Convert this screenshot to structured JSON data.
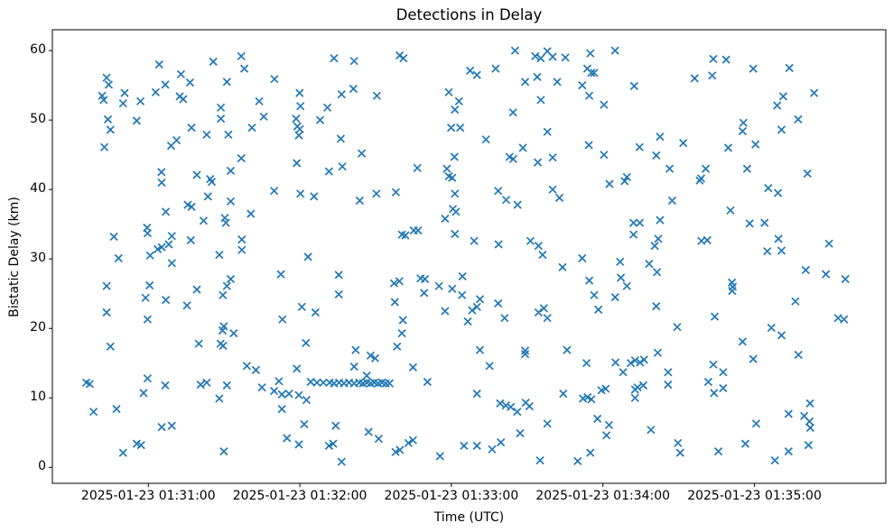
{
  "chart_data": {
    "type": "scatter",
    "title": "Detections in Delay",
    "xlabel": "Time (UTC)",
    "ylabel": "Bistatic Delay (km)",
    "marker": "x",
    "marker_color": "#1f77b4",
    "axes_edge_color": "#000000",
    "background_color": "#ffffff",
    "grid": false,
    "legend": null,
    "x_axis": {
      "unit": "seconds relative to 2025-01-23 01:31:00 UTC",
      "min": -38,
      "max": 292,
      "ticks": [
        {
          "value": 0,
          "label": "2025-01-23 01:31:00"
        },
        {
          "value": 60,
          "label": "2025-01-23 01:32:00"
        },
        {
          "value": 120,
          "label": "2025-01-23 01:33:00"
        },
        {
          "value": 180,
          "label": "2025-01-23 01:34:00"
        },
        {
          "value": 240,
          "label": "2025-01-23 01:35:00"
        }
      ]
    },
    "y_axis": {
      "min": -2.3,
      "max": 63,
      "ticks": [
        {
          "value": 0,
          "label": "0"
        },
        {
          "value": 10,
          "label": "10"
        },
        {
          "value": 20,
          "label": "20"
        },
        {
          "value": 30,
          "label": "30"
        },
        {
          "value": 40,
          "label": "40"
        },
        {
          "value": 50,
          "label": "50"
        },
        {
          "value": 60,
          "label": "60"
        }
      ]
    },
    "points": [
      [
        4.3,
        58.0
      ],
      [
        25.7,
        58.4
      ],
      [
        36.8,
        59.2
      ],
      [
        38.0,
        57.4
      ],
      [
        73.5,
        58.9
      ],
      [
        -16.5,
        56.1
      ],
      [
        -15.7,
        55.1
      ],
      [
        12.9,
        56.6
      ],
      [
        16.5,
        55.4
      ],
      [
        31.1,
        55.5
      ],
      [
        49.9,
        55.9
      ],
      [
        6.7,
        55.1
      ],
      [
        2.9,
        54.0
      ],
      [
        -18.3,
        53.5
      ],
      [
        -17.7,
        52.9
      ],
      [
        -9.4,
        53.9
      ],
      [
        -10.0,
        52.4
      ],
      [
        -3.1,
        52.7
      ],
      [
        12.4,
        53.4
      ],
      [
        13.8,
        53.0
      ],
      [
        43.9,
        52.7
      ],
      [
        59.9,
        53.9
      ],
      [
        60.2,
        52.0
      ],
      [
        70.9,
        51.8
      ],
      [
        28.7,
        51.8
      ],
      [
        28.7,
        50.2
      ],
      [
        45.7,
        50.5
      ],
      [
        -16.0,
        50.1
      ],
      [
        -15.0,
        48.6
      ],
      [
        -4.6,
        49.9
      ],
      [
        17.1,
        48.9
      ],
      [
        23.1,
        47.9
      ],
      [
        31.7,
        47.9
      ],
      [
        41.0,
        48.9
      ],
      [
        58.5,
        50.2
      ],
      [
        59.0,
        49.1
      ],
      [
        60.0,
        48.7
      ],
      [
        59.6,
        47.8
      ],
      [
        68.0,
        50.0
      ],
      [
        -17.4,
        46.1
      ],
      [
        9.0,
        46.3
      ],
      [
        11.2,
        47.1
      ],
      [
        36.8,
        44.5
      ],
      [
        58.8,
        43.8
      ],
      [
        32.6,
        42.7
      ],
      [
        5.2,
        42.5
      ],
      [
        19.2,
        42.1
      ],
      [
        71.5,
        42.6
      ],
      [
        24.5,
        41.5
      ],
      [
        81.5,
        58.5
      ],
      [
        99.5,
        59.3
      ],
      [
        101.0,
        58.9
      ],
      [
        145.2,
        60.0
      ],
      [
        153.2,
        59.2
      ],
      [
        155.4,
        58.9
      ],
      [
        158.0,
        59.9
      ],
      [
        160.1,
        59.1
      ],
      [
        165.1,
        59.0
      ],
      [
        175.0,
        59.6
      ],
      [
        127.4,
        57.1
      ],
      [
        130.1,
        56.5
      ],
      [
        137.5,
        57.4
      ],
      [
        173.8,
        57.4
      ],
      [
        175.4,
        56.8
      ],
      [
        176.5,
        56.8
      ],
      [
        149.2,
        55.5
      ],
      [
        154.0,
        56.2
      ],
      [
        161.9,
        55.5
      ],
      [
        76.5,
        53.7
      ],
      [
        81.2,
        54.5
      ],
      [
        90.5,
        53.5
      ],
      [
        119.0,
        54.0
      ],
      [
        123.0,
        52.7
      ],
      [
        171.8,
        55.0
      ],
      [
        174.6,
        53.5
      ],
      [
        121.4,
        51.5
      ],
      [
        144.4,
        51.1
      ],
      [
        155.4,
        52.9
      ],
      [
        180.4,
        52.2
      ],
      [
        119.9,
        48.9
      ],
      [
        123.5,
        48.9
      ],
      [
        133.7,
        47.2
      ],
      [
        158.0,
        48.3
      ],
      [
        76.2,
        47.3
      ],
      [
        84.5,
        45.2
      ],
      [
        76.8,
        43.3
      ],
      [
        106.5,
        43.1
      ],
      [
        121.2,
        44.7
      ],
      [
        118.2,
        43.0
      ],
      [
        143.0,
        44.7
      ],
      [
        144.5,
        44.4
      ],
      [
        148.3,
        46.0
      ],
      [
        154.2,
        43.9
      ],
      [
        160.1,
        44.6
      ],
      [
        174.4,
        46.4
      ],
      [
        180.4,
        45.0
      ],
      [
        119.0,
        41.9
      ],
      [
        120.3,
        41.7
      ],
      [
        184.8,
        60.0
      ],
      [
        223.7,
        58.8
      ],
      [
        228.8,
        58.7
      ],
      [
        239.5,
        57.4
      ],
      [
        253.8,
        57.5
      ],
      [
        216.3,
        56.0
      ],
      [
        223.3,
        56.4
      ],
      [
        192.4,
        54.9
      ],
      [
        263.6,
        53.9
      ],
      [
        251.4,
        53.4
      ],
      [
        249.0,
        52.1
      ],
      [
        257.3,
        50.1
      ],
      [
        250.7,
        48.6
      ],
      [
        235.6,
        49.6
      ],
      [
        235.3,
        48.4
      ],
      [
        202.6,
        47.6
      ],
      [
        194.5,
        46.1
      ],
      [
        211.8,
        46.7
      ],
      [
        201.1,
        44.9
      ],
      [
        229.6,
        46.0
      ],
      [
        240.4,
        46.5
      ],
      [
        206.4,
        43.0
      ],
      [
        220.7,
        43.0
      ],
      [
        237.1,
        43.0
      ],
      [
        261.0,
        42.3
      ],
      [
        189.5,
        41.8
      ],
      [
        218.9,
        41.6
      ],
      [
        5.3,
        41.0
      ],
      [
        25.1,
        41.1
      ],
      [
        49.8,
        39.8
      ],
      [
        60.2,
        39.4
      ],
      [
        65.6,
        39.0
      ],
      [
        23.6,
        39.0
      ],
      [
        32.6,
        38.3
      ],
      [
        15.6,
        37.8
      ],
      [
        17.1,
        37.5
      ],
      [
        6.9,
        36.8
      ],
      [
        40.6,
        36.5
      ],
      [
        21.9,
        35.5
      ],
      [
        30.3,
        35.9
      ],
      [
        30.7,
        35.2
      ],
      [
        -0.5,
        34.5
      ],
      [
        -0.3,
        33.7
      ],
      [
        -13.6,
        33.2
      ],
      [
        9.3,
        33.3
      ],
      [
        16.8,
        32.7
      ],
      [
        37.0,
        32.8
      ],
      [
        3.7,
        31.4
      ],
      [
        5.3,
        31.7
      ],
      [
        8.1,
        32.1
      ],
      [
        37.0,
        31.3
      ],
      [
        0.7,
        30.5
      ],
      [
        -11.8,
        30.1
      ],
      [
        28.1,
        30.6
      ],
      [
        63.2,
        30.3
      ],
      [
        9.3,
        29.4
      ],
      [
        52.5,
        27.8
      ],
      [
        32.6,
        27.1
      ],
      [
        -16.5,
        26.1
      ],
      [
        0.5,
        26.2
      ],
      [
        31.1,
        26.1
      ],
      [
        19.2,
        25.6
      ],
      [
        29.5,
        24.8
      ],
      [
        -1.1,
        24.4
      ],
      [
        6.9,
        24.1
      ],
      [
        15.3,
        23.3
      ],
      [
        -16.5,
        22.3
      ],
      [
        60.8,
        23.1
      ],
      [
        66.2,
        22.3
      ],
      [
        53.1,
        21.3
      ],
      [
        -0.3,
        21.3
      ],
      [
        29.9,
        20.3
      ],
      [
        83.7,
        38.4
      ],
      [
        90.3,
        39.4
      ],
      [
        98.0,
        39.6
      ],
      [
        121.4,
        39.4
      ],
      [
        138.5,
        39.8
      ],
      [
        160.1,
        40.0
      ],
      [
        162.8,
        38.8
      ],
      [
        141.7,
        38.5
      ],
      [
        146.2,
        37.8
      ],
      [
        120.6,
        37.2
      ],
      [
        121.8,
        36.8
      ],
      [
        117.5,
        35.8
      ],
      [
        100.4,
        33.5
      ],
      [
        101.8,
        33.4
      ],
      [
        105.1,
        34.1
      ],
      [
        106.8,
        34.1
      ],
      [
        121.4,
        33.6
      ],
      [
        129.0,
        32.6
      ],
      [
        138.7,
        32.1
      ],
      [
        151.3,
        32.6
      ],
      [
        154.5,
        31.9
      ],
      [
        156.1,
        30.6
      ],
      [
        164.0,
        28.8
      ],
      [
        171.8,
        30.1
      ],
      [
        75.4,
        27.7
      ],
      [
        75.4,
        24.9
      ],
      [
        97.3,
        26.5
      ],
      [
        99.4,
        26.8
      ],
      [
        107.8,
        27.2
      ],
      [
        109.5,
        27.1
      ],
      [
        109.2,
        25.1
      ],
      [
        115.1,
        26.1
      ],
      [
        120.3,
        25.7
      ],
      [
        124.4,
        27.5
      ],
      [
        124.2,
        24.8
      ],
      [
        131.3,
        24.2
      ],
      [
        97.6,
        23.8
      ],
      [
        138.5,
        23.6
      ],
      [
        117.5,
        22.5
      ],
      [
        128.2,
        22.6
      ],
      [
        130.1,
        23.1
      ],
      [
        141.1,
        21.5
      ],
      [
        154.5,
        22.3
      ],
      [
        156.6,
        22.9
      ],
      [
        158.0,
        21.5
      ],
      [
        174.6,
        26.9
      ],
      [
        176.5,
        24.8
      ],
      [
        178.2,
        22.7
      ],
      [
        100.8,
        21.2
      ],
      [
        126.5,
        21.0
      ],
      [
        182.6,
        40.8
      ],
      [
        188.6,
        41.2
      ],
      [
        218.3,
        41.3
      ],
      [
        245.5,
        40.2
      ],
      [
        249.3,
        39.5
      ],
      [
        207.4,
        38.4
      ],
      [
        230.5,
        37.0
      ],
      [
        192.1,
        35.2
      ],
      [
        194.6,
        35.2
      ],
      [
        202.6,
        35.6
      ],
      [
        192.1,
        33.5
      ],
      [
        201.9,
        32.9
      ],
      [
        200.5,
        31.9
      ],
      [
        238.1,
        35.1
      ],
      [
        244.0,
        35.2
      ],
      [
        219.0,
        32.6
      ],
      [
        221.3,
        32.7
      ],
      [
        249.5,
        32.9
      ],
      [
        245.1,
        31.1
      ],
      [
        250.7,
        31.2
      ],
      [
        269.5,
        32.2
      ],
      [
        186.8,
        29.6
      ],
      [
        198.3,
        29.3
      ],
      [
        201.4,
        28.1
      ],
      [
        187.1,
        27.3
      ],
      [
        189.5,
        26.1
      ],
      [
        184.8,
        24.5
      ],
      [
        260.3,
        28.4
      ],
      [
        268.3,
        27.8
      ],
      [
        276.0,
        27.1
      ],
      [
        231.1,
        26.6
      ],
      [
        231.4,
        26.0
      ],
      [
        231.2,
        25.4
      ],
      [
        256.2,
        23.9
      ],
      [
        201.1,
        23.2
      ],
      [
        224.3,
        21.7
      ],
      [
        273.1,
        21.5
      ],
      [
        275.5,
        21.3
      ],
      [
        209.4,
        20.2
      ],
      [
        246.7,
        20.1
      ],
      [
        29.4,
        19.7
      ],
      [
        33.8,
        19.3
      ],
      [
        -15.0,
        17.4
      ],
      [
        20.0,
        17.8
      ],
      [
        28.6,
        17.8
      ],
      [
        29.6,
        17.5
      ],
      [
        62.4,
        17.9
      ],
      [
        39.0,
        14.6
      ],
      [
        42.6,
        14.0
      ],
      [
        58.8,
        14.2
      ],
      [
        -24.6,
        12.2
      ],
      [
        -23.2,
        12.0
      ],
      [
        -0.3,
        12.8
      ],
      [
        -1.9,
        10.7
      ],
      [
        6.7,
        11.8
      ],
      [
        20.7,
        11.9
      ],
      [
        23.1,
        12.2
      ],
      [
        31.1,
        11.8
      ],
      [
        28.1,
        9.9
      ],
      [
        45.0,
        11.5
      ],
      [
        49.8,
        11.0
      ],
      [
        51.7,
        12.4
      ],
      [
        52.9,
        10.5
      ],
      [
        55.7,
        10.6
      ],
      [
        59.6,
        10.4
      ],
      [
        62.6,
        9.7
      ],
      [
        52.9,
        8.4
      ],
      [
        64.3,
        12.3
      ],
      [
        66.8,
        12.2
      ],
      [
        69.3,
        12.2
      ],
      [
        71.8,
        12.2
      ],
      [
        -21.7,
        8.0
      ],
      [
        -12.6,
        8.4
      ],
      [
        5.3,
        5.8
      ],
      [
        9.3,
        6.0
      ],
      [
        61.7,
        6.2
      ],
      [
        54.9,
        4.2
      ],
      [
        59.6,
        3.3
      ],
      [
        -4.6,
        3.4
      ],
      [
        -2.9,
        3.2
      ],
      [
        -10.0,
        2.1
      ],
      [
        29.9,
        2.3
      ],
      [
        71.5,
        3.1
      ],
      [
        73.5,
        12.1
      ],
      [
        75.5,
        12.2
      ],
      [
        77.5,
        12.1
      ],
      [
        79.5,
        12.2
      ],
      [
        81.5,
        12.1
      ],
      [
        83.5,
        12.2
      ],
      [
        85.0,
        12.1
      ],
      [
        86.5,
        12.2
      ],
      [
        88.0,
        12.1
      ],
      [
        89.5,
        12.2
      ],
      [
        91.0,
        12.1
      ],
      [
        92.5,
        12.2
      ],
      [
        94.0,
        12.1
      ],
      [
        95.5,
        12.1
      ],
      [
        86.5,
        13.2
      ],
      [
        100.4,
        19.3
      ],
      [
        98.5,
        17.4
      ],
      [
        82.1,
        16.9
      ],
      [
        88.0,
        16.1
      ],
      [
        89.8,
        15.7
      ],
      [
        81.5,
        14.5
      ],
      [
        104.8,
        14.4
      ],
      [
        131.3,
        16.9
      ],
      [
        135.1,
        14.6
      ],
      [
        149.2,
        16.8
      ],
      [
        149.2,
        16.3
      ],
      [
        165.8,
        16.9
      ],
      [
        173.5,
        15.0
      ],
      [
        110.5,
        12.3
      ],
      [
        130.1,
        10.6
      ],
      [
        139.3,
        9.2
      ],
      [
        141.6,
        8.9
      ],
      [
        143.5,
        8.7
      ],
      [
        146.1,
        8.0
      ],
      [
        149.4,
        9.3
      ],
      [
        150.9,
        8.8
      ],
      [
        164.3,
        10.6
      ],
      [
        158.0,
        6.3
      ],
      [
        147.2,
        4.9
      ],
      [
        172.1,
        9.9
      ],
      [
        173.9,
        10.1
      ],
      [
        175.4,
        9.8
      ],
      [
        179.4,
        11.1
      ],
      [
        177.8,
        7.0
      ],
      [
        74.2,
        6.0
      ],
      [
        87.2,
        5.1
      ],
      [
        91.2,
        4.1
      ],
      [
        73.2,
        3.4
      ],
      [
        103.0,
        3.5
      ],
      [
        104.8,
        3.9
      ],
      [
        97.9,
        2.2
      ],
      [
        99.6,
        2.5
      ],
      [
        115.5,
        1.6
      ],
      [
        125.0,
        3.1
      ],
      [
        130.1,
        3.1
      ],
      [
        136.1,
        2.6
      ],
      [
        139.6,
        3.6
      ],
      [
        155.1,
        1.0
      ],
      [
        76.5,
        0.8
      ],
      [
        170.0,
        0.9
      ],
      [
        175.0,
        2.1
      ],
      [
        250.7,
        19.0
      ],
      [
        235.3,
        18.1
      ],
      [
        201.7,
        16.5
      ],
      [
        257.4,
        16.2
      ],
      [
        239.5,
        15.6
      ],
      [
        223.7,
        14.8
      ],
      [
        227.6,
        13.7
      ],
      [
        185.0,
        15.1
      ],
      [
        188.0,
        13.7
      ],
      [
        191.0,
        15.0
      ],
      [
        192.7,
        15.4
      ],
      [
        194.7,
        15.1
      ],
      [
        196.3,
        15.5
      ],
      [
        205.8,
        13.7
      ],
      [
        205.8,
        11.9
      ],
      [
        196.0,
        11.8
      ],
      [
        192.7,
        11.2
      ],
      [
        193.7,
        11.5
      ],
      [
        192.7,
        10.0
      ],
      [
        181.1,
        11.3
      ],
      [
        221.7,
        12.3
      ],
      [
        224.0,
        10.7
      ],
      [
        227.6,
        11.4
      ],
      [
        253.5,
        7.7
      ],
      [
        259.7,
        7.4
      ],
      [
        261.8,
        6.6
      ],
      [
        262.0,
        9.2
      ],
      [
        262.1,
        5.7
      ],
      [
        240.7,
        6.3
      ],
      [
        182.4,
        6.1
      ],
      [
        181.4,
        4.6
      ],
      [
        199.0,
        5.4
      ],
      [
        209.7,
        3.5
      ],
      [
        210.6,
        2.1
      ],
      [
        225.7,
        2.3
      ],
      [
        236.4,
        3.4
      ],
      [
        261.4,
        3.2
      ],
      [
        253.5,
        2.3
      ],
      [
        248.1,
        1.0
      ]
    ]
  }
}
